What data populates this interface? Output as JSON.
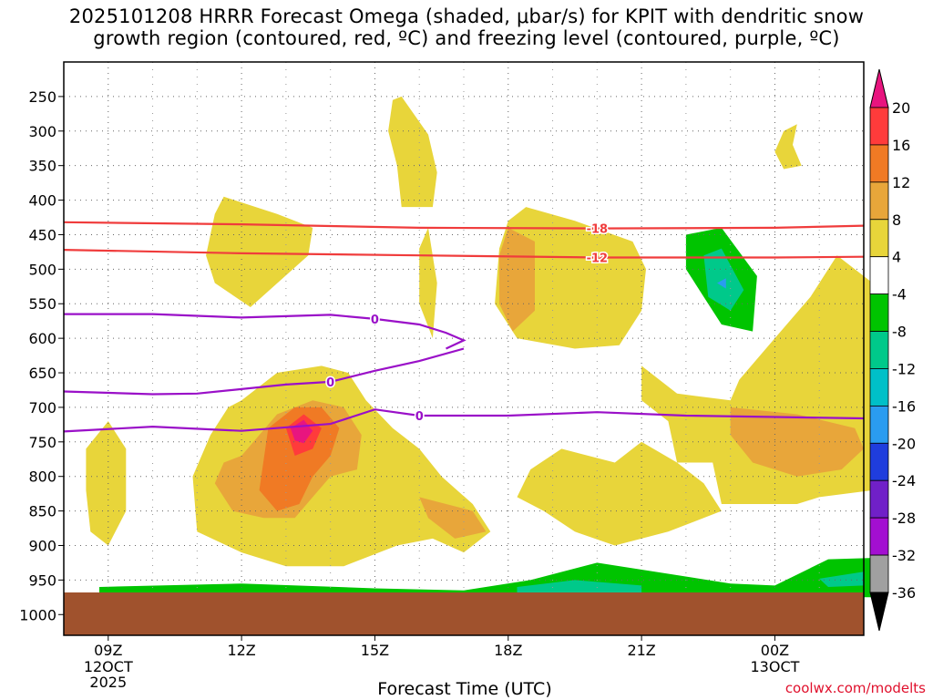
{
  "chart_data": {
    "type": "heatmap",
    "title_line1": "2025101208 HRRR Forecast Omega (shaded, μbar/s) for KPIT with dendritic snow",
    "title_line2": "growth region (contoured, red, ºC) and freezing level (contoured, purple, ºC)",
    "xlabel": "Forecast Time (UTC)",
    "x_ticks": [
      {
        "label": "09Z",
        "sub1": "12OCT",
        "sub2": "2025",
        "hour": 9
      },
      {
        "label": "12Z",
        "sub1": "",
        "sub2": "",
        "hour": 12
      },
      {
        "label": "15Z",
        "sub1": "",
        "sub2": "",
        "hour": 15
      },
      {
        "label": "18Z",
        "sub1": "",
        "sub2": "",
        "hour": 18
      },
      {
        "label": "21Z",
        "sub1": "",
        "sub2": "",
        "hour": 21
      },
      {
        "label": "00Z",
        "sub1": "13OCT",
        "sub2": "",
        "hour": 24
      }
    ],
    "x_range_hours": [
      8,
      26
    ],
    "y_ticks": [
      250,
      300,
      350,
      400,
      450,
      500,
      550,
      600,
      650,
      700,
      750,
      800,
      850,
      900,
      950,
      1000
    ],
    "y_range_hpa": [
      200,
      1030
    ],
    "surface_hpa": 968,
    "colorbar": {
      "labels": [
        "20",
        "16",
        "12",
        "8",
        "4",
        "-4",
        "-8",
        "-12",
        "-16",
        "-20",
        "-24",
        "-28",
        "-32",
        "-36"
      ],
      "colors": [
        "#ff3b3b",
        "#f07a24",
        "#e8a63a",
        "#e8d53a",
        "#ffffff",
        "#00c400",
        "#00c98a",
        "#00c0c8",
        "#2a9cf0",
        "#1f3ddd",
        "#7020c8",
        "#a30fd1",
        "#a0a0a0"
      ],
      "top_color": "#e8157f",
      "bottom_color": "#000000"
    },
    "contours": {
      "dgz_red": [
        {
          "label": "-18",
          "points": [
            [
              8,
              432
            ],
            [
              12,
              435
            ],
            [
              16,
              440
            ],
            [
              20,
              441
            ],
            [
              24,
              440
            ],
            [
              26,
              437
            ]
          ]
        },
        {
          "label": "-12",
          "points": [
            [
              8,
              472
            ],
            [
              12,
              477
            ],
            [
              16,
              480
            ],
            [
              20,
              483
            ],
            [
              24,
              483
            ],
            [
              26,
              482
            ]
          ]
        }
      ],
      "freezing_purple": [
        {
          "label": "0",
          "points": [
            [
              8,
              565
            ],
            [
              10,
              565
            ],
            [
              12,
              570
            ],
            [
              14,
              566
            ],
            [
              15,
              572
            ],
            [
              16,
              580
            ],
            [
              16.6,
              592
            ],
            [
              17,
              603
            ],
            [
              16.6,
              615
            ]
          ]
        },
        {
          "label": "0",
          "points": [
            [
              8,
              677
            ],
            [
              10,
              681
            ],
            [
              11,
              680
            ],
            [
              13,
              667
            ],
            [
              14,
              663
            ],
            [
              15,
              647
            ],
            [
              16,
              633
            ],
            [
              17,
              615
            ]
          ]
        },
        {
          "label": "0",
          "points": [
            [
              8,
              735
            ],
            [
              10,
              728
            ],
            [
              12,
              734
            ],
            [
              14,
              724
            ],
            [
              15,
              703
            ],
            [
              16,
              712
            ],
            [
              18,
              712
            ],
            [
              20,
              707
            ],
            [
              22,
              712
            ],
            [
              24,
              714
            ],
            [
              26,
              716
            ]
          ]
        }
      ]
    },
    "omega_regions": [
      {
        "value": "4",
        "points": [
          [
            15.6,
            250
          ],
          [
            16.2,
            305
          ],
          [
            16.4,
            360
          ],
          [
            16.3,
            410
          ],
          [
            15.6,
            410
          ],
          [
            15.5,
            350
          ],
          [
            15.3,
            300
          ],
          [
            15.4,
            255
          ]
        ]
      },
      {
        "value": "4",
        "points": [
          [
            24.4,
            320
          ],
          [
            24.6,
            350
          ],
          [
            24.2,
            355
          ],
          [
            24.0,
            330
          ],
          [
            24.2,
            300
          ],
          [
            24.5,
            290
          ]
        ]
      },
      {
        "value": "4",
        "points": [
          [
            11.6,
            395
          ],
          [
            12.8,
            420
          ],
          [
            13.6,
            440
          ],
          [
            13.5,
            480
          ],
          [
            12.2,
            555
          ],
          [
            11.4,
            520
          ],
          [
            11.2,
            480
          ],
          [
            11.4,
            420
          ]
        ]
      },
      {
        "value": "4",
        "points": [
          [
            16.2,
            440
          ],
          [
            16.4,
            520
          ],
          [
            16.3,
            600
          ],
          [
            16.0,
            550
          ],
          [
            16.0,
            470
          ]
        ]
      },
      {
        "value": "4",
        "points": [
          [
            18.4,
            410
          ],
          [
            19.5,
            430
          ],
          [
            20.8,
            460
          ],
          [
            21.1,
            500
          ],
          [
            21.0,
            560
          ],
          [
            20.5,
            610
          ],
          [
            19.5,
            615
          ],
          [
            18.2,
            600
          ],
          [
            17.7,
            550
          ],
          [
            17.8,
            470
          ],
          [
            18.0,
            430
          ]
        ]
      },
      {
        "value": "4",
        "points": [
          [
            12.0,
            690
          ],
          [
            12.8,
            650
          ],
          [
            13.8,
            640
          ],
          [
            14.4,
            650
          ],
          [
            14.8,
            690
          ],
          [
            15.4,
            730
          ],
          [
            16.0,
            760
          ],
          [
            16.5,
            800
          ],
          [
            17.2,
            840
          ],
          [
            17.6,
            880
          ],
          [
            17.0,
            910
          ],
          [
            16.3,
            890
          ],
          [
            15.5,
            900
          ],
          [
            14.3,
            930
          ],
          [
            13.0,
            930
          ],
          [
            12.0,
            910
          ],
          [
            11.0,
            880
          ],
          [
            10.9,
            800
          ],
          [
            11.3,
            740
          ],
          [
            11.7,
            700
          ]
        ]
      },
      {
        "value": "4",
        "points": [
          [
            8.5,
            760
          ],
          [
            9.0,
            720
          ],
          [
            9.4,
            760
          ],
          [
            9.4,
            850
          ],
          [
            9.0,
            900
          ],
          [
            8.6,
            880
          ],
          [
            8.5,
            820
          ]
        ]
      },
      {
        "value": "4",
        "points": [
          [
            21.0,
            640
          ],
          [
            21.8,
            680
          ],
          [
            23.0,
            690
          ],
          [
            23.2,
            660
          ],
          [
            24.0,
            600
          ],
          [
            24.8,
            540
          ],
          [
            25.4,
            480
          ],
          [
            26.2,
            520
          ],
          [
            26.2,
            820
          ],
          [
            25.0,
            830
          ],
          [
            24.5,
            840
          ],
          [
            23.5,
            840
          ],
          [
            22.8,
            840
          ],
          [
            22.6,
            780
          ],
          [
            21.8,
            780
          ],
          [
            21.6,
            720
          ],
          [
            21.0,
            690
          ]
        ]
      },
      {
        "value": "4",
        "points": [
          [
            18.5,
            790
          ],
          [
            19.2,
            760
          ],
          [
            20.4,
            780
          ],
          [
            21.0,
            750
          ],
          [
            21.8,
            780
          ],
          [
            22.4,
            810
          ],
          [
            22.8,
            850
          ],
          [
            21.6,
            880
          ],
          [
            20.4,
            900
          ],
          [
            19.5,
            880
          ],
          [
            18.8,
            850
          ],
          [
            18.2,
            830
          ]
        ]
      },
      {
        "value": "8",
        "points": [
          [
            12.0,
            770
          ],
          [
            12.8,
            710
          ],
          [
            13.6,
            690
          ],
          [
            14.3,
            700
          ],
          [
            14.7,
            740
          ],
          [
            14.6,
            790
          ],
          [
            14.0,
            800
          ],
          [
            13.6,
            830
          ],
          [
            13.2,
            860
          ],
          [
            12.5,
            860
          ],
          [
            11.8,
            850
          ],
          [
            11.4,
            810
          ],
          [
            11.6,
            780
          ]
        ]
      },
      {
        "value": "8",
        "points": [
          [
            18.0,
            440
          ],
          [
            18.6,
            460
          ],
          [
            18.6,
            560
          ],
          [
            18.1,
            590
          ],
          [
            17.8,
            550
          ],
          [
            17.8,
            480
          ]
        ]
      },
      {
        "value": "8",
        "points": [
          [
            23.0,
            700
          ],
          [
            24.5,
            710
          ],
          [
            25.8,
            730
          ],
          [
            26.0,
            760
          ],
          [
            25.5,
            790
          ],
          [
            24.5,
            800
          ],
          [
            23.5,
            780
          ],
          [
            23.0,
            740
          ]
        ]
      },
      {
        "value": "8",
        "points": [
          [
            16.0,
            830
          ],
          [
            17.2,
            850
          ],
          [
            17.5,
            880
          ],
          [
            16.8,
            890
          ],
          [
            16.2,
            860
          ]
        ]
      },
      {
        "value": "12",
        "points": [
          [
            12.6,
            730
          ],
          [
            13.2,
            700
          ],
          [
            13.8,
            700
          ],
          [
            14.2,
            730
          ],
          [
            14.0,
            770
          ],
          [
            13.6,
            800
          ],
          [
            13.3,
            840
          ],
          [
            12.8,
            850
          ],
          [
            12.4,
            820
          ]
        ]
      },
      {
        "value": "16",
        "points": [
          [
            13.0,
            730
          ],
          [
            13.4,
            710
          ],
          [
            13.8,
            730
          ],
          [
            13.6,
            760
          ],
          [
            13.2,
            770
          ]
        ]
      },
      {
        "value": "20",
        "points": [
          [
            13.1,
            730
          ],
          [
            13.4,
            718
          ],
          [
            13.6,
            734
          ],
          [
            13.4,
            752
          ],
          [
            13.2,
            748
          ]
        ]
      },
      {
        "value": "-4",
        "points": [
          [
            22.0,
            450
          ],
          [
            22.8,
            440
          ],
          [
            23.6,
            510
          ],
          [
            23.5,
            590
          ],
          [
            22.8,
            580
          ],
          [
            22.4,
            540
          ],
          [
            22.0,
            500
          ]
        ]
      },
      {
        "value": "-8",
        "points": [
          [
            22.4,
            480
          ],
          [
            22.8,
            470
          ],
          [
            23.3,
            530
          ],
          [
            23.0,
            560
          ],
          [
            22.5,
            540
          ]
        ]
      },
      {
        "value": "-12",
        "points": [
          [
            22.7,
            520
          ],
          [
            22.9,
            513
          ],
          [
            22.9,
            528
          ]
        ]
      },
      {
        "value": "-4",
        "points": [
          [
            8.8,
            960
          ],
          [
            12,
            955
          ],
          [
            15,
            962
          ],
          [
            17,
            965
          ],
          [
            18.5,
            950
          ],
          [
            20,
            925
          ],
          [
            21.5,
            940
          ],
          [
            23,
            955
          ],
          [
            24,
            958
          ],
          [
            25.2,
            920
          ],
          [
            26.2,
            918
          ],
          [
            26.2,
            975
          ],
          [
            8.8,
            975
          ]
        ]
      },
      {
        "value": "-8",
        "points": [
          [
            18.2,
            960
          ],
          [
            19.5,
            950
          ],
          [
            21.0,
            958
          ],
          [
            21.0,
            975
          ],
          [
            18.2,
            975
          ]
        ]
      },
      {
        "value": "-8",
        "points": [
          [
            25.0,
            948
          ],
          [
            26.0,
            938
          ],
          [
            26.0,
            958
          ],
          [
            25.2,
            960
          ]
        ]
      }
    ],
    "credit": "coolwx.com/modelts"
  }
}
